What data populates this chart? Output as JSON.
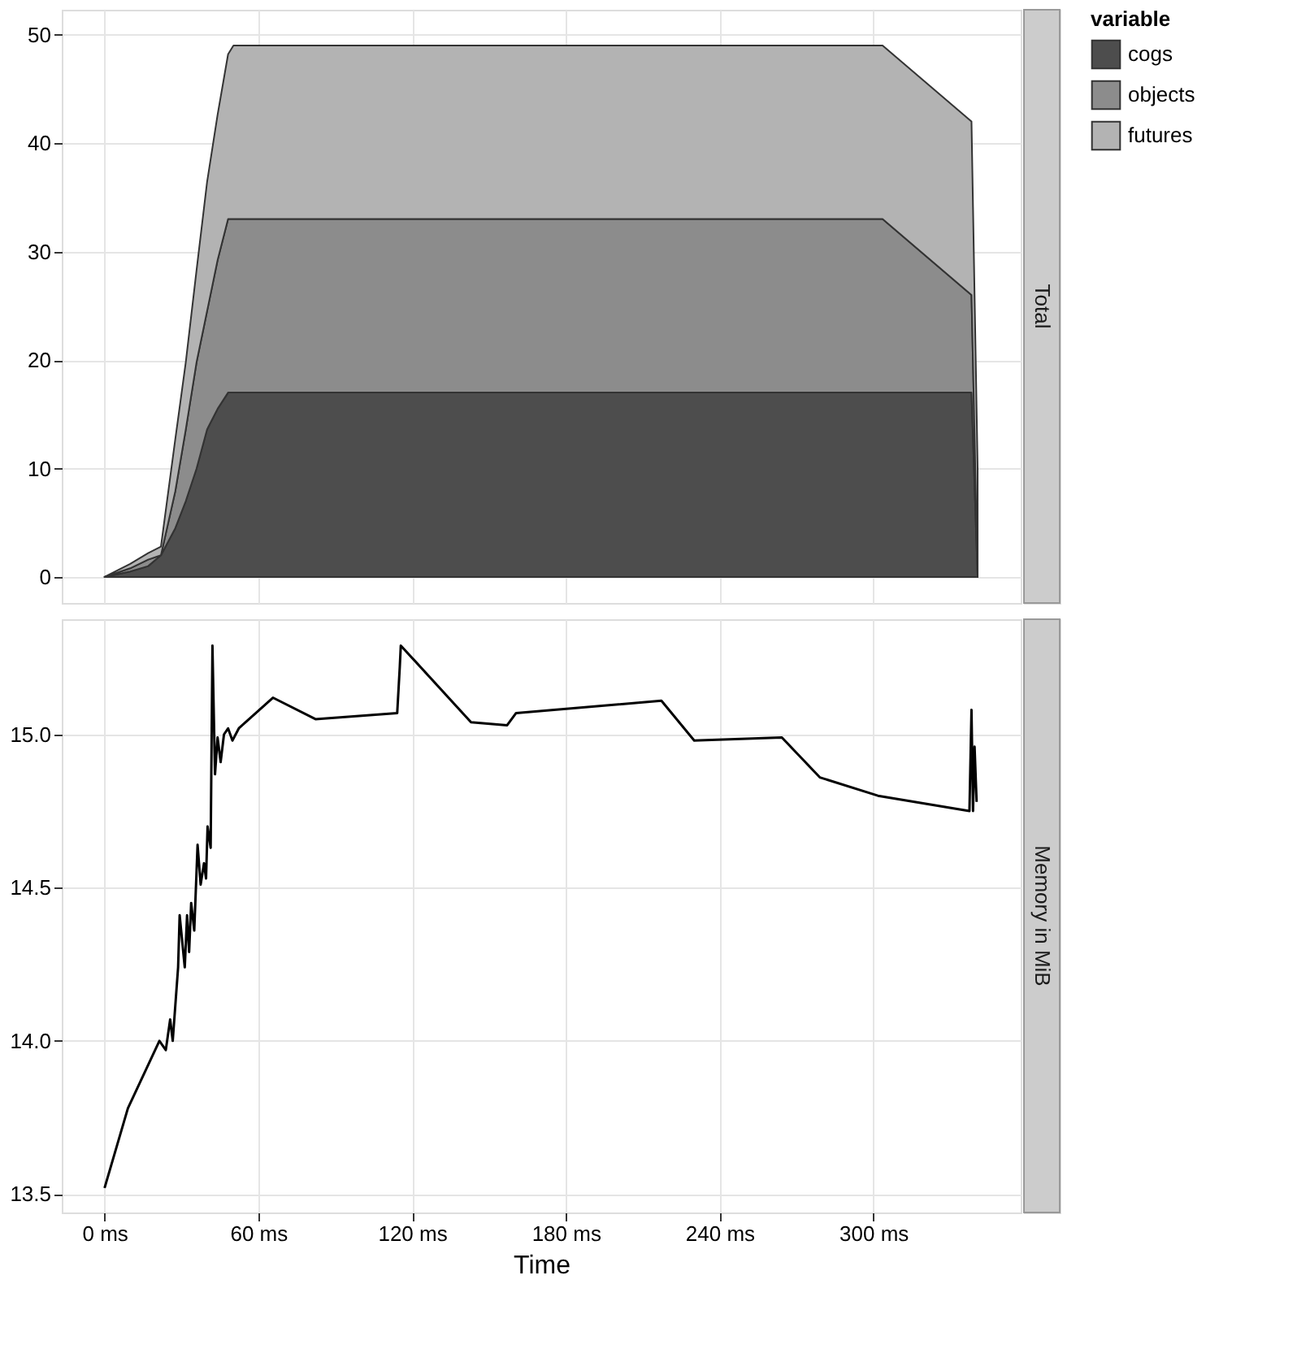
{
  "chart_data": [
    {
      "type": "area",
      "title": "Total",
      "stacked": true,
      "legend": "right",
      "legend_title": "variable",
      "grid": true,
      "tick_labels": "y",
      "x": [
        0,
        10,
        17,
        22,
        27.6,
        31.7,
        35.9,
        40,
        44.1,
        48.2,
        50.3,
        303.6,
        338.3,
        340.7
      ],
      "xlim": [
        -16.7,
        357.5
      ],
      "xticks": [
        {
          "value": 0,
          "label": null
        },
        {
          "value": 60,
          "label": null
        },
        {
          "value": 120,
          "label": null
        },
        {
          "value": 180,
          "label": null
        },
        {
          "value": 240,
          "label": null
        },
        {
          "value": 300,
          "label": null
        }
      ],
      "ylim": [
        -2.4,
        52.3
      ],
      "yticks": [
        0,
        10,
        20,
        30,
        40,
        50
      ],
      "series": [
        {
          "name": "cogs",
          "color": "#4d4d4d",
          "values": [
            0,
            0.5,
            1,
            2,
            4.5,
            7,
            10,
            13.6,
            15.5,
            17,
            17,
            17,
            17,
            0
          ]
        },
        {
          "name": "objects",
          "color": "#8c8c8c",
          "values": [
            0,
            0.3,
            0.6,
            0,
            3.4,
            6.6,
            9.8,
            10.9,
            13.7,
            16,
            16,
            16,
            9,
            0
          ]
        },
        {
          "name": "futures",
          "color": "#b3b3b3",
          "values": [
            0,
            0.4,
            0.6,
            0.8,
            4.8,
            6.2,
            8.5,
            11.9,
            13.4,
            15.2,
            16,
            16,
            16,
            10
          ]
        }
      ]
    },
    {
      "type": "line",
      "title": "Memory in MiB",
      "xlabel": "Time",
      "grid": true,
      "marker": "none",
      "line_style": "solid",
      "x": [
        0,
        9.1,
        21.4,
        23.9,
        25.6,
        26.6,
        28.7,
        29.3,
        31.3,
        32.2,
        33,
        33.8,
        35,
        36.3,
        37.5,
        38.8,
        39.6,
        40.2,
        41.4,
        42.1,
        43.1,
        44.1,
        45.3,
        46.6,
        48.2,
        49.9,
        52.4,
        65.7,
        82.3,
        114.2,
        115.2,
        115.6,
        143,
        157.1,
        160.6,
        217.3,
        230.1,
        264.3,
        279.1,
        301.8,
        337.5,
        338.3,
        338.9,
        339.5,
        340.3
      ],
      "xlim": [
        -16.7,
        357.5
      ],
      "xticks": [
        {
          "value": 0,
          "label": "0 ms"
        },
        {
          "value": 60,
          "label": "60 ms"
        },
        {
          "value": 120,
          "label": "120 ms"
        },
        {
          "value": 180,
          "label": "180 ms"
        },
        {
          "value": 240,
          "label": "240 ms"
        },
        {
          "value": 300,
          "label": "300 ms"
        }
      ],
      "ylim": [
        13.44,
        15.376
      ],
      "yticks": [
        13.5,
        {
          "value": 14,
          "label": "14.0"
        },
        14.5,
        {
          "value": 15,
          "label": "15.0"
        }
      ],
      "series": [
        {
          "color": "#000000",
          "values": [
            13.52,
            13.78,
            14.0,
            13.97,
            14.07,
            14.0,
            14.24,
            14.41,
            14.24,
            14.41,
            14.29,
            14.45,
            14.36,
            14.64,
            14.51,
            14.58,
            14.53,
            14.7,
            14.63,
            15.29,
            14.87,
            14.99,
            14.91,
            15.0,
            15.02,
            14.98,
            15.02,
            15.12,
            15.05,
            15.07,
            15.22,
            15.29,
            15.04,
            15.03,
            15.07,
            15.11,
            14.98,
            14.99,
            14.86,
            14.8,
            14.75,
            15.08,
            14.75,
            14.96,
            14.78
          ]
        }
      ]
    }
  ]
}
